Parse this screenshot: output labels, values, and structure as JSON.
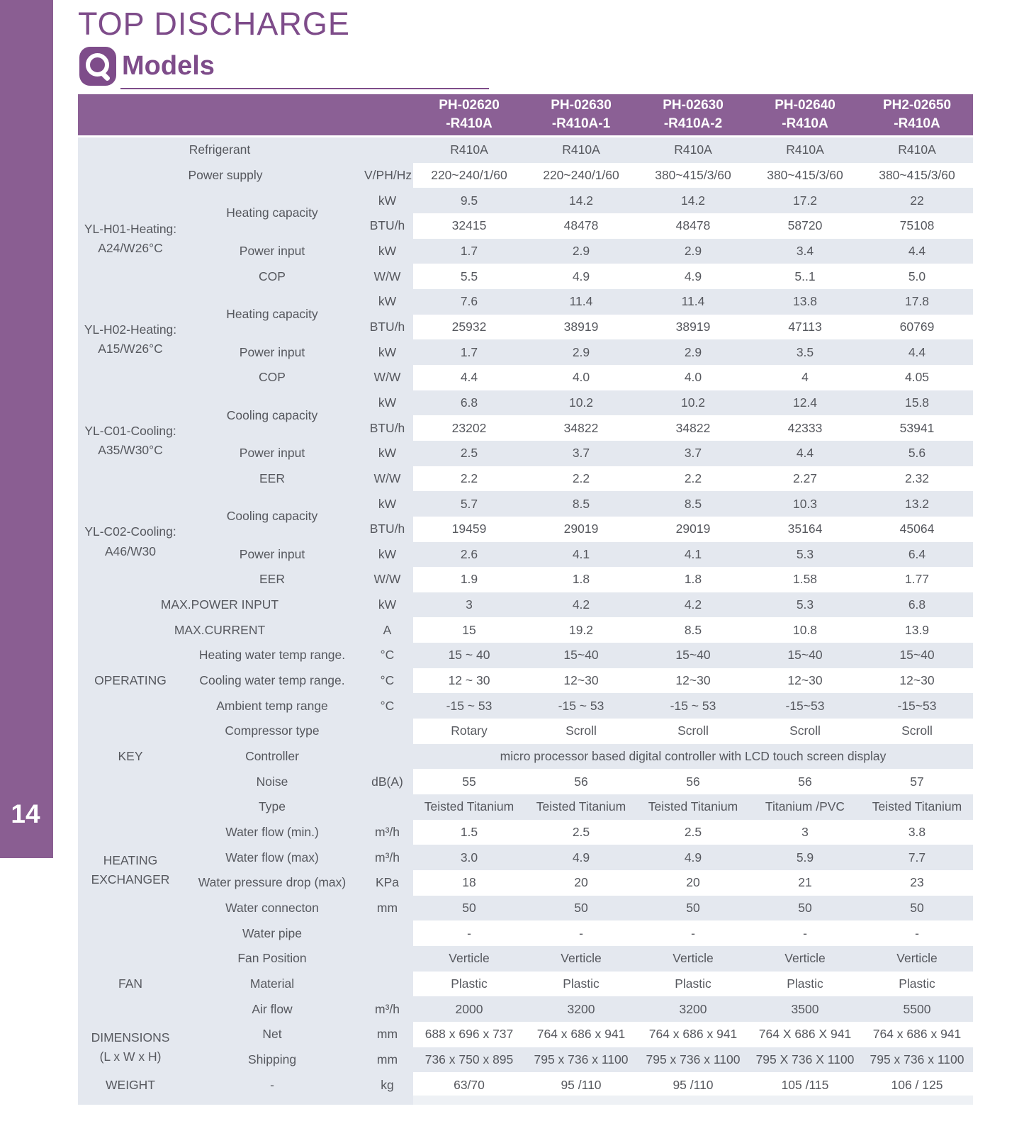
{
  "page": {
    "title": "TOP DISCHARGE",
    "section": "Models",
    "page_number": "14",
    "accent_color": "#7e4c8a",
    "header_purple": "#8b6095",
    "row_shade_color": "#e4e8ef"
  },
  "table": {
    "models": [
      {
        "line1": "PH-02620",
        "line2": "-R410A"
      },
      {
        "line1": "PH-02630",
        "line2": "-R410A-1"
      },
      {
        "line1": "PH-02630",
        "line2": "-R410A-2"
      },
      {
        "line1": "PH-02640",
        "line2": "-R410A"
      },
      {
        "line1": "PH2-02650",
        "line2": "-R410A"
      }
    ],
    "rows": [
      {
        "label": "Refrigerant",
        "wide": true,
        "align": "left",
        "unit": "",
        "values": [
          "R410A",
          "R410A",
          "R410A",
          "R410A",
          "R410A"
        ]
      },
      {
        "label": "Power supply",
        "wide": true,
        "align": "left",
        "indent": true,
        "unit": "V/PH/Hz",
        "values": [
          "220~240/1/60",
          "220~240/1/60",
          "380~415/3/60",
          "380~415/3/60",
          "380~415/3/60"
        ]
      },
      {
        "group": [
          "YL-H01-Heating:",
          "A24/W26°C"
        ],
        "group_rows": 4,
        "label": "Heating capacity",
        "label_rows": 2,
        "unit": "kW",
        "values": [
          "9.5",
          "14.2",
          "14.2",
          "17.2",
          "22"
        ]
      },
      {
        "unit": "BTU/h",
        "values": [
          "32415",
          "48478",
          "48478",
          "58720",
          "75108"
        ]
      },
      {
        "label": "Power input",
        "unit": "kW",
        "values": [
          "1.7",
          "2.9",
          "2.9",
          "3.4",
          "4.4"
        ]
      },
      {
        "label": "COP",
        "unit": "W/W",
        "values": [
          "5.5",
          "4.9",
          "4.9",
          "5..1",
          "5.0"
        ]
      },
      {
        "group": [
          "YL-H02-Heating:",
          "A15/W26°C"
        ],
        "group_rows": 4,
        "label": "Heating capacity",
        "label_rows": 2,
        "unit": "kW",
        "values": [
          "7.6",
          "11.4",
          "11.4",
          "13.8",
          "17.8"
        ]
      },
      {
        "unit": "BTU/h",
        "values": [
          "25932",
          "38919",
          "38919",
          "47113",
          "60769"
        ]
      },
      {
        "label": "Power input",
        "unit": "kW",
        "values": [
          "1.7",
          "2.9",
          "2.9",
          "3.5",
          "4.4"
        ]
      },
      {
        "label": "COP",
        "unit": "W/W",
        "values": [
          "4.4",
          "4.0",
          "4.0",
          "4",
          "4.05"
        ]
      },
      {
        "group": [
          "YL-C01-Cooling:",
          "A35/W30°C"
        ],
        "group_rows": 4,
        "label": "Cooling capacity",
        "label_rows": 2,
        "unit": "kW",
        "values": [
          "6.8",
          "10.2",
          "10.2",
          "12.4",
          "15.8"
        ]
      },
      {
        "unit": "BTU/h",
        "values": [
          "23202",
          "34822",
          "34822",
          "42333",
          "53941"
        ]
      },
      {
        "label": "Power input",
        "unit": "kW",
        "values": [
          "2.5",
          "3.7",
          "3.7",
          "4.4",
          "5.6"
        ]
      },
      {
        "label": "EER",
        "unit": "W/W",
        "values": [
          "2.2",
          "2.2",
          "2.2",
          "2.27",
          "2.32"
        ]
      },
      {
        "group": [
          "YL-C02-Cooling:",
          "A46/W30"
        ],
        "group_rows": 4,
        "label": "Cooling capacity",
        "label_rows": 2,
        "unit": "kW",
        "values": [
          "5.7",
          "8.5",
          "8.5",
          "10.3",
          "13.2"
        ]
      },
      {
        "unit": "BTU/h",
        "values": [
          "19459",
          "29019",
          "29019",
          "35164",
          "45064"
        ]
      },
      {
        "label": "Power input",
        "unit": "kW",
        "values": [
          "2.6",
          "4.1",
          "4.1",
          "5.3",
          "6.4"
        ]
      },
      {
        "label": "EER",
        "unit": "W/W",
        "values": [
          "1.9",
          "1.8",
          "1.8",
          "1.58",
          "1.77"
        ]
      },
      {
        "label": "MAX.POWER INPUT",
        "wide": true,
        "align": "center",
        "unit": "kW",
        "values": [
          "3",
          "4.2",
          "4.2",
          "5.3",
          "6.8"
        ]
      },
      {
        "label": "MAX.CURRENT",
        "wide": true,
        "align": "center",
        "unit": "A",
        "values": [
          "15",
          "19.2",
          "8.5",
          "10.8",
          "13.9"
        ]
      },
      {
        "group": [
          "OPERATING"
        ],
        "group_rows": 3,
        "label": "Heating water  temp range.",
        "unit": "°C",
        "values": [
          "15 ~ 40",
          "15~40",
          "15~40",
          "15~40",
          "15~40"
        ]
      },
      {
        "label": "Cooling water  temp range.",
        "unit": "°C",
        "values": [
          "12 ~ 30",
          "12~30",
          "12~30",
          "12~30",
          "12~30"
        ]
      },
      {
        "label": "Ambient temp range",
        "unit": "°C",
        "values": [
          "-15 ~ 53",
          "-15 ~ 53",
          "-15 ~ 53",
          "-15~53",
          "-15~53"
        ]
      },
      {
        "group": [
          "KEY"
        ],
        "group_rows": 3,
        "label": "Compressor type",
        "unit": "",
        "values": [
          "Rotary",
          "Scroll",
          "Scroll",
          "Scroll",
          "Scroll"
        ]
      },
      {
        "label": "Controller",
        "unit": "",
        "value_span": "micro processor based digital controller with LCD touch screen display"
      },
      {
        "label": "Noise",
        "unit": "dB(A)",
        "values": [
          "55",
          "56",
          "56",
          "56",
          "57"
        ]
      },
      {
        "group": [
          "HEATING",
          "EXCHANGER"
        ],
        "group_rows": 6,
        "label": "Type",
        "unit": "",
        "values": [
          "Teisted Titanium",
          "Teisted Titanium",
          "Teisted Titanium",
          "Titanium /PVC",
          "Teisted Titanium"
        ]
      },
      {
        "label": "Water flow (min.)",
        "unit": "m³/h",
        "values": [
          "1.5",
          "2.5",
          "2.5",
          "3",
          "3.8"
        ]
      },
      {
        "label": "Water flow (max)",
        "unit": "m³/h",
        "values": [
          "3.0",
          "4.9",
          "4.9",
          "5.9",
          "7.7"
        ]
      },
      {
        "label": "Water pressure drop (max)",
        "unit": "KPa",
        "values": [
          "18",
          "20",
          "20",
          "21",
          "23"
        ]
      },
      {
        "label": "Water connecton",
        "unit": "mm",
        "values": [
          "50",
          "50",
          "50",
          "50",
          "50"
        ]
      },
      {
        "label": "Water pipe",
        "unit": "",
        "values": [
          "-",
          "-",
          "-",
          "-",
          "-"
        ]
      },
      {
        "group": [
          "FAN"
        ],
        "group_rows": 3,
        "label": "Fan Position",
        "unit": "",
        "values": [
          "Verticle",
          "Verticle",
          "Verticle",
          "Verticle",
          "Verticle"
        ]
      },
      {
        "label": "Material",
        "unit": "",
        "values": [
          "Plastic",
          "Plastic",
          "Plastic",
          "Plastic",
          "Plastic"
        ]
      },
      {
        "label": "Air flow",
        "unit": "m³/h",
        "values": [
          "2000",
          "3200",
          "3200",
          "3500",
          "5500"
        ]
      },
      {
        "group": [
          "DIMENSIONS",
          "(L x W x H)"
        ],
        "group_rows": 2,
        "label": "Net",
        "unit": "mm",
        "values": [
          "688 x 696 x 737",
          "764 x 686 x 941",
          "764 x 686 x 941",
          "764 X 686 X 941",
          "764 x 686 x 941"
        ]
      },
      {
        "label": "Shipping",
        "unit": "mm",
        "values": [
          "736 x 750 x 895",
          "795 x 736 x 1100",
          "795 x 736 x 1100",
          "795 X 736 X 1100",
          "795 x 736 x 1100"
        ]
      },
      {
        "group": [
          "WEIGHT"
        ],
        "group_rows": 1,
        "label": "-",
        "unit": "kg",
        "values": [
          "63/70",
          "95 /110",
          "95 /110",
          "105 /115",
          "106 / 125"
        ]
      }
    ]
  }
}
